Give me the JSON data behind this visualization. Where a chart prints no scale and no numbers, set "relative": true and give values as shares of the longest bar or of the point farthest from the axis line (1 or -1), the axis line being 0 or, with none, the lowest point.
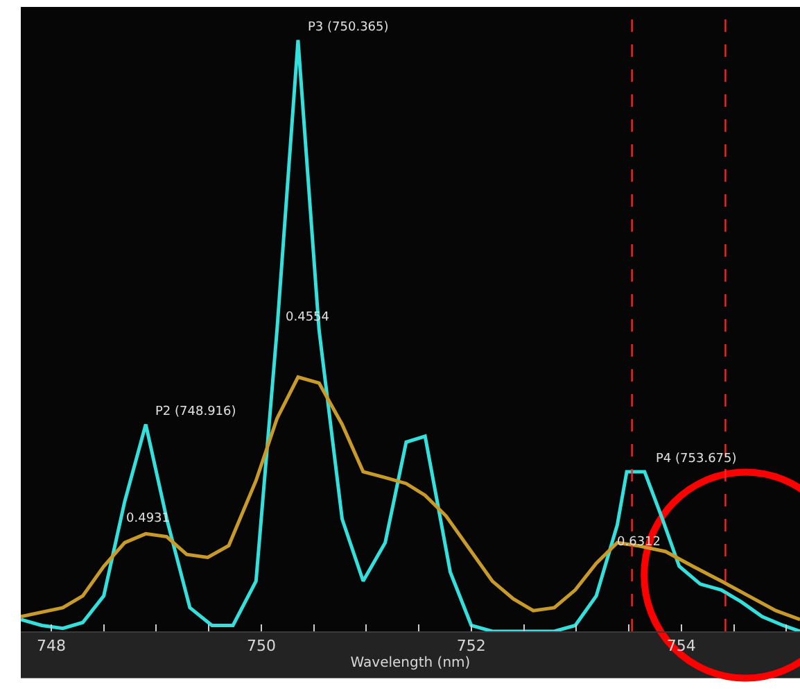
{
  "chart_data": {
    "type": "line",
    "relative": true,
    "xlabel": "Wavelength (nm)",
    "xlim": [
      747.71,
      755.13
    ],
    "xticks": [
      748,
      {
        "value": 748.5,
        "label": null
      },
      {
        "value": 749,
        "label": null
      },
      {
        "value": 749.5,
        "label": null
      },
      750,
      {
        "value": 750.5,
        "label": null
      },
      {
        "value": 751,
        "label": null
      },
      {
        "value": 751.5,
        "label": null
      },
      752,
      {
        "value": 752.5,
        "label": null
      },
      {
        "value": 753,
        "label": null
      },
      {
        "value": 753.5,
        "label": null
      },
      754,
      {
        "value": 754.5,
        "label": null
      },
      {
        "value": 755,
        "label": null
      }
    ],
    "grid": false,
    "marker": "none",
    "line_style": "solid",
    "series": [
      {
        "color": "#33e0dc",
        "x": [
          747.71,
          747.91,
          748.11,
          748.3,
          748.5,
          748.7,
          748.9,
          749.1,
          749.32,
          749.53,
          749.73,
          749.95,
          750.15,
          750.35,
          750.55,
          750.77,
          750.97,
          751.18,
          751.38,
          751.56,
          751.8,
          752.0,
          752.2,
          752.4,
          752.59,
          752.79,
          752.99,
          753.19,
          753.39,
          753.48,
          753.65,
          753.82,
          753.98,
          754.18,
          754.38,
          754.57,
          754.77,
          754.97,
          755.13
        ],
        "values": [
          0.02,
          0.01,
          0.005,
          0.015,
          0.06,
          0.22,
          0.35,
          0.19,
          0.04,
          0.01,
          0.01,
          0.085,
          0.51,
          1.0,
          0.51,
          0.19,
          0.085,
          0.15,
          0.32,
          0.33,
          0.1,
          0.01,
          0,
          0,
          0,
          0,
          0.01,
          0.06,
          0.18,
          0.27,
          0.27,
          0.19,
          0.11,
          0.08,
          0.07,
          0.05,
          0.025,
          0.01,
          0
        ]
      },
      {
        "color": "#c89a2a",
        "x": [
          747.71,
          748.11,
          748.3,
          748.5,
          748.7,
          748.9,
          749.1,
          749.29,
          749.49,
          749.69,
          749.95,
          750.15,
          750.35,
          750.55,
          750.77,
          750.97,
          751.18,
          751.38,
          751.56,
          751.76,
          752.0,
          752.2,
          752.4,
          752.59,
          752.79,
          752.99,
          753.19,
          753.39,
          753.58,
          753.85,
          754.11,
          754.38,
          754.64,
          754.9,
          755.13
        ],
        "values": [
          0.025,
          0.04,
          0.06,
          0.11,
          0.15,
          0.165,
          0.16,
          0.13,
          0.125,
          0.145,
          0.255,
          0.36,
          0.43,
          0.42,
          0.35,
          0.27,
          0.26,
          0.25,
          0.23,
          0.195,
          0.135,
          0.085,
          0.055,
          0.035,
          0.04,
          0.07,
          0.115,
          0.15,
          0.145,
          0.135,
          0.11,
          0.085,
          0.06,
          0.035,
          0.02
        ]
      }
    ],
    "ref_lines": [
      {
        "axis": "x",
        "value": 753.53,
        "color": "#ff2020",
        "line_style": "dashed"
      },
      {
        "axis": "x",
        "value": 754.42,
        "color": "#ff2020",
        "line_style": "dashed"
      }
    ],
    "annotations": [
      {
        "text": "P2 (748.916)",
        "x": 748.916,
        "y": 0.35
      },
      {
        "text": "P3 (750.365)",
        "x": 750.365,
        "y": 1.0
      },
      {
        "text": "P4 (753.675)",
        "x": 753.675,
        "y": 0.27
      },
      {
        "text": "0.4931",
        "x": 748.64,
        "y": 0.17
      },
      {
        "text": "0.4554",
        "x": 750.15,
        "y": 0.51
      },
      {
        "text": "0.6312",
        "x": 753.31,
        "y": 0.13
      }
    ]
  }
}
